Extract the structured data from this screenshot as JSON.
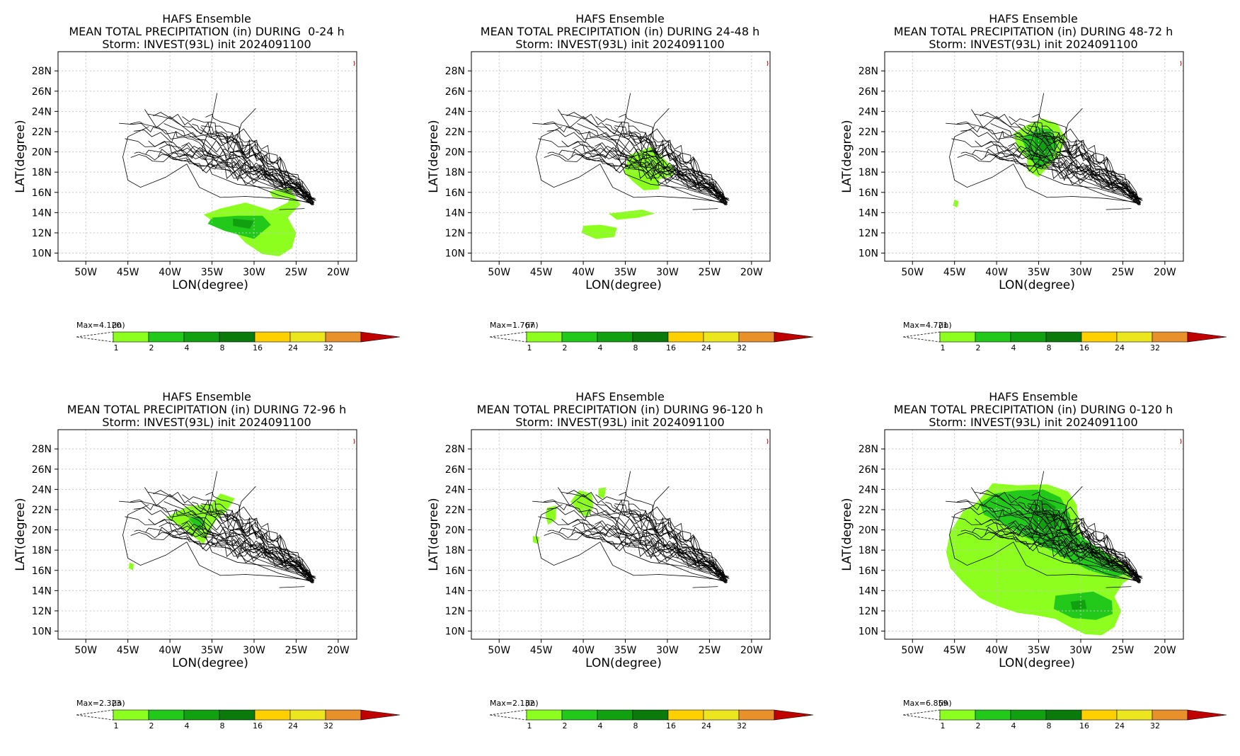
{
  "colors": {
    "levels": [
      "#8cff1e",
      "#22c81a",
      "#10a010",
      "#0a7a0a",
      "#ffd000",
      "#ebe61e",
      "#e8902a",
      "#c00000"
    ],
    "track": "#000000",
    "grid": "#c8c8c8"
  },
  "common": {
    "title1": "HAFS Ensemble",
    "title3": "Storm: INVEST(93L) init 2024091100",
    "xlabel": "LON(degree)",
    "ylabel": "LAT(degree)",
    "units": "(in)",
    "xticks": [
      "50W",
      "45W",
      "40W",
      "35W",
      "30W",
      "25W",
      "20W"
    ],
    "yticks": [
      "28N",
      "26N",
      "24N",
      "22N",
      "20N",
      "18N",
      "16N",
      "14N",
      "12N",
      "10N"
    ],
    "colorbar_levels": [
      "1",
      "2",
      "4",
      "8",
      "16",
      "24",
      "32"
    ]
  },
  "panels": [
    {
      "title2": "MEAN TOTAL PRECIPITATION (in) DURING  0-24 h",
      "max_label": "Max=4.120"
    },
    {
      "title2": "MEAN TOTAL PRECIPITATION (in) DURING 24-48 h",
      "max_label": "Max=1.767"
    },
    {
      "title2": "MEAN TOTAL PRECIPITATION (in) DURING 48-72 h",
      "max_label": "Max=4.721"
    },
    {
      "title2": "MEAN TOTAL PRECIPITATION (in) DURING 72-96 h",
      "max_label": "Max=2.323"
    },
    {
      "title2": "MEAN TOTAL PRECIPITATION (in) DURING 96-120 h",
      "max_label": "Max=2.132"
    },
    {
      "title2": "MEAN TOTAL PRECIPITATION (in) DURING 0-120 h",
      "max_label": "Max=6.859"
    }
  ],
  "chart_data": [
    {
      "type": "heatmap",
      "title": "HAFS Ensemble MEAN TOTAL PRECIPITATION (in) DURING 0-24 h",
      "xlim": [
        -53.3,
        -17.8
      ],
      "ylim": [
        9.2,
        29.9
      ],
      "max": 4.12,
      "regions": [
        {
          "level": 1,
          "polygon": [
            [
              -31,
              15
            ],
            [
              -28,
              14.2
            ],
            [
              -26,
              15
            ],
            [
              -25.5,
              16
            ],
            [
              -24.5,
              14.8
            ],
            [
              -26,
              13.5
            ],
            [
              -25,
              12
            ],
            [
              -25.5,
              10.5
            ],
            [
              -27,
              9.7
            ],
            [
              -29,
              9.9
            ],
            [
              -31,
              11
            ],
            [
              -32.5,
              12.3
            ],
            [
              -35,
              13.2
            ],
            [
              -36,
              13.8
            ],
            [
              -34,
              14.4
            ]
          ]
        },
        {
          "level": 2,
          "polygon": [
            [
              -35,
              13.5
            ],
            [
              -32,
              13.7
            ],
            [
              -29,
              13.7
            ],
            [
              -28,
              12.8
            ],
            [
              -30,
              11.4
            ],
            [
              -33.5,
              12.2
            ],
            [
              -35.5,
              12.9
            ]
          ]
        },
        {
          "level": 3,
          "polygon": [
            [
              -32.5,
              13.4
            ],
            [
              -30,
              13.2
            ],
            [
              -30.5,
              12.4
            ],
            [
              -32.5,
              12.7
            ]
          ]
        },
        {
          "level": 1,
          "polygon": [
            [
              -28.2,
              16.1
            ],
            [
              -25.5,
              16.5
            ],
            [
              -25.5,
              15.4
            ],
            [
              -27.8,
              15.5
            ]
          ]
        }
      ]
    },
    {
      "type": "heatmap",
      "title": "HAFS Ensemble MEAN TOTAL PRECIPITATION (in) DURING 24-48 h",
      "xlim": [
        -53.3,
        -17.8
      ],
      "ylim": [
        9.2,
        29.9
      ],
      "max": 1.767,
      "regions": [
        {
          "level": 1,
          "polygon": [
            [
              -34.5,
              19.7
            ],
            [
              -32,
              20.5
            ],
            [
              -31,
              19.8
            ],
            [
              -29,
              18.2
            ],
            [
              -29.5,
              17.6
            ],
            [
              -31,
              17.3
            ],
            [
              -31,
              16.3
            ],
            [
              -32.8,
              16.2
            ],
            [
              -34,
              17
            ],
            [
              -35.2,
              18
            ]
          ]
        },
        {
          "level": 1,
          "polygon": [
            [
              -40,
              12.7
            ],
            [
              -38,
              12.8
            ],
            [
              -36,
              12.5
            ],
            [
              -36.3,
              11.6
            ],
            [
              -38.5,
              11.4
            ],
            [
              -40.2,
              12
            ]
          ]
        },
        {
          "level": 1,
          "polygon": [
            [
              -37,
              13.9
            ],
            [
              -33,
              14.3
            ],
            [
              -31.5,
              13.9
            ],
            [
              -33.5,
              13.5
            ],
            [
              -36,
              13.3
            ]
          ]
        }
      ]
    },
    {
      "type": "heatmap",
      "title": "HAFS Ensemble MEAN TOTAL PRECIPITATION (in) DURING 48-72 h",
      "xlim": [
        -53.3,
        -17.8
      ],
      "ylim": [
        9.2,
        29.9
      ],
      "max": 4.721,
      "regions": [
        {
          "level": 1,
          "polygon": [
            [
              -38,
              21.8
            ],
            [
              -36.5,
              22.6
            ],
            [
              -34.5,
              23.3
            ],
            [
              -32.8,
              22.8
            ],
            [
              -31.8,
              21.3
            ],
            [
              -32.5,
              19.6
            ],
            [
              -33.7,
              18.7
            ],
            [
              -35,
              17.5
            ],
            [
              -36.3,
              18.1
            ],
            [
              -36.4,
              19.3
            ],
            [
              -37.5,
              20.3
            ]
          ]
        },
        {
          "level": 2,
          "polygon": [
            [
              -37,
              21.3
            ],
            [
              -35,
              22.4
            ],
            [
              -33.4,
              22.2
            ],
            [
              -32.8,
              20.7
            ],
            [
              -33.5,
              19.2
            ],
            [
              -35,
              18.3
            ],
            [
              -36,
              19.3
            ],
            [
              -36.6,
              20.5
            ]
          ]
        },
        {
          "level": 3,
          "polygon": [
            [
              -35.5,
              21.7
            ],
            [
              -33.6,
              21.6
            ],
            [
              -33.5,
              20.3
            ],
            [
              -34.5,
              19.5
            ],
            [
              -35.4,
              20.2
            ]
          ]
        },
        {
          "level": 1,
          "polygon": [
            [
              -45,
              15.3
            ],
            [
              -44.5,
              15.1
            ],
            [
              -44.7,
              14.5
            ],
            [
              -45.2,
              14.7
            ]
          ]
        }
      ]
    },
    {
      "type": "heatmap",
      "title": "HAFS Ensemble MEAN TOTAL PRECIPITATION (in) DURING 72-96 h",
      "xlim": [
        -53.3,
        -17.8
      ],
      "ylim": [
        9.2,
        29.9
      ],
      "max": 2.323,
      "regions": [
        {
          "level": 1,
          "polygon": [
            [
              -40.5,
              21.2
            ],
            [
              -38,
              22.3
            ],
            [
              -35,
              22.6
            ],
            [
              -34,
              23.6
            ],
            [
              -32.3,
              23.1
            ],
            [
              -33.3,
              21.8
            ],
            [
              -34.5,
              21
            ],
            [
              -35.3,
              19.8
            ],
            [
              -36,
              18.6
            ],
            [
              -37.5,
              19.5
            ],
            [
              -39,
              20.5
            ]
          ]
        },
        {
          "level": 2,
          "polygon": [
            [
              -37.8,
              21.1
            ],
            [
              -36.5,
              21.4
            ],
            [
              -35.8,
              20.6
            ],
            [
              -36.6,
              19.9
            ]
          ]
        },
        {
          "level": 1,
          "polygon": [
            [
              -44.8,
              16.8
            ],
            [
              -44.3,
              16.6
            ],
            [
              -44.4,
              16
            ],
            [
              -44.9,
              16.2
            ]
          ]
        }
      ]
    },
    {
      "type": "heatmap",
      "title": "HAFS Ensemble MEAN TOTAL PRECIPITATION (in) DURING 96-120 h",
      "xlim": [
        -53.3,
        -17.8
      ],
      "ylim": [
        9.2,
        29.9
      ],
      "max": 2.132,
      "regions": [
        {
          "level": 1,
          "polygon": [
            [
              -41.5,
              22.8
            ],
            [
              -40.5,
              23.9
            ],
            [
              -39,
              23.6
            ],
            [
              -38.8,
              22.3
            ],
            [
              -39.5,
              21.2
            ],
            [
              -40.5,
              21.7
            ]
          ]
        },
        {
          "level": 1,
          "polygon": [
            [
              -44.3,
              22.2
            ],
            [
              -43.2,
              22.4
            ],
            [
              -43.3,
              21
            ],
            [
              -44.2,
              20.5
            ],
            [
              -44.5,
              21.5
            ]
          ]
        },
        {
          "level": 1,
          "polygon": [
            [
              -46,
              19.4
            ],
            [
              -45.2,
              19.3
            ],
            [
              -45.4,
              18.6
            ],
            [
              -46,
              18.8
            ]
          ]
        },
        {
          "level": 1,
          "polygon": [
            [
              -38.2,
              24.1
            ],
            [
              -37.3,
              24.2
            ],
            [
              -37.5,
              23.1
            ],
            [
              -38.2,
              23.3
            ]
          ]
        }
      ]
    },
    {
      "type": "heatmap",
      "title": "HAFS Ensemble MEAN TOTAL PRECIPITATION (in) DURING 0-120 h",
      "xlim": [
        -53.3,
        -17.8
      ],
      "ylim": [
        9.2,
        29.9
      ],
      "max": 6.859,
      "regions": [
        {
          "level": 1,
          "polygon": [
            [
              -41.5,
              23.5
            ],
            [
              -40.5,
              24.6
            ],
            [
              -37.5,
              24.4
            ],
            [
              -34,
              24.5
            ],
            [
              -31.5,
              23.8
            ],
            [
              -30.5,
              22.5
            ],
            [
              -30.2,
              20.5
            ],
            [
              -29.5,
              19
            ],
            [
              -27,
              17.8
            ],
            [
              -25,
              16.8
            ],
            [
              -23.5,
              15.6
            ],
            [
              -25,
              14.7
            ],
            [
              -26,
              13.4
            ],
            [
              -25.2,
              12
            ],
            [
              -26,
              10.4
            ],
            [
              -27.5,
              9.6
            ],
            [
              -29.5,
              9.7
            ],
            [
              -31.5,
              10.5
            ],
            [
              -33,
              11.2
            ],
            [
              -35.5,
              11.6
            ],
            [
              -37.5,
              11.8
            ],
            [
              -40,
              12.5
            ],
            [
              -42,
              13.3
            ],
            [
              -44,
              14.8
            ],
            [
              -45.5,
              16.2
            ],
            [
              -46,
              17.8
            ],
            [
              -45.5,
              19.8
            ],
            [
              -44,
              21.8
            ],
            [
              -42.5,
              22.6
            ]
          ]
        },
        {
          "level": 2,
          "polygon": [
            [
              -42,
              22.6
            ],
            [
              -40.2,
              23.6
            ],
            [
              -37.5,
              23.9
            ],
            [
              -34.5,
              24
            ],
            [
              -32.4,
              23.2
            ],
            [
              -31.3,
              21.5
            ],
            [
              -31,
              20
            ],
            [
              -28.5,
              18.5
            ],
            [
              -26,
              17
            ],
            [
              -24.2,
              15.8
            ],
            [
              -26,
              15.3
            ],
            [
              -29,
              16
            ],
            [
              -32,
              17.3
            ],
            [
              -34.3,
              18.3
            ],
            [
              -36.8,
              19.4
            ],
            [
              -39.2,
              20.6
            ],
            [
              -41.5,
              21.5
            ]
          ]
        },
        {
          "level": 3,
          "polygon": [
            [
              -36,
              22.2
            ],
            [
              -34.5,
              23.1
            ],
            [
              -33,
              22.3
            ],
            [
              -32.6,
              20.5
            ],
            [
              -34,
              19.6
            ],
            [
              -35.5,
              20.3
            ]
          ]
        },
        {
          "level": 2,
          "polygon": [
            [
              -33,
              13.5
            ],
            [
              -28.5,
              13.9
            ],
            [
              -26.3,
              13
            ],
            [
              -26.2,
              11.7
            ],
            [
              -28.2,
              11.1
            ],
            [
              -31,
              11.3
            ],
            [
              -33.2,
              12.2
            ]
          ]
        },
        {
          "level": 3,
          "polygon": [
            [
              -31.2,
              12.9
            ],
            [
              -29.5,
              13.1
            ],
            [
              -29.3,
              12.2
            ],
            [
              -31,
              12.1
            ]
          ]
        }
      ]
    }
  ]
}
